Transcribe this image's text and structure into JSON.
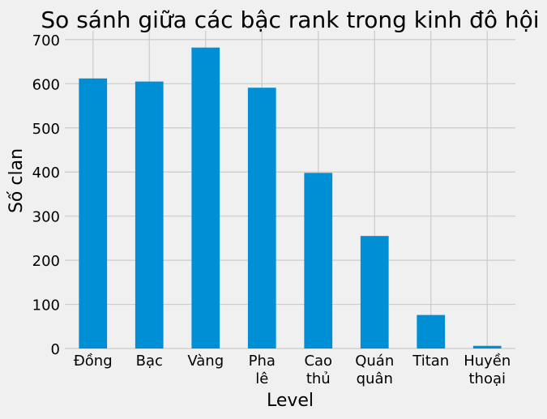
{
  "chart_data": {
    "type": "bar",
    "title": "So sánh giữa các bậc rank trong kinh đô hội",
    "xlabel": "Level",
    "ylabel": "Số clan",
    "categories": [
      [
        "Đồng"
      ],
      [
        "Bạc"
      ],
      [
        "Vàng"
      ],
      [
        "Pha",
        "lê"
      ],
      [
        "Cao",
        "thủ"
      ],
      [
        "Quán",
        "quân"
      ],
      [
        "Titan"
      ],
      [
        "Huyền",
        "thoại"
      ]
    ],
    "values": [
      612,
      605,
      682,
      591,
      398,
      255,
      76,
      6
    ],
    "ylim": [
      0,
      720
    ],
    "yticks": [
      0,
      100,
      200,
      300,
      400,
      500,
      600,
      700
    ],
    "grid": true,
    "bar_color": "#008fd5",
    "background": "#f0f0f0",
    "grid_color": "#cbcbcb"
  }
}
